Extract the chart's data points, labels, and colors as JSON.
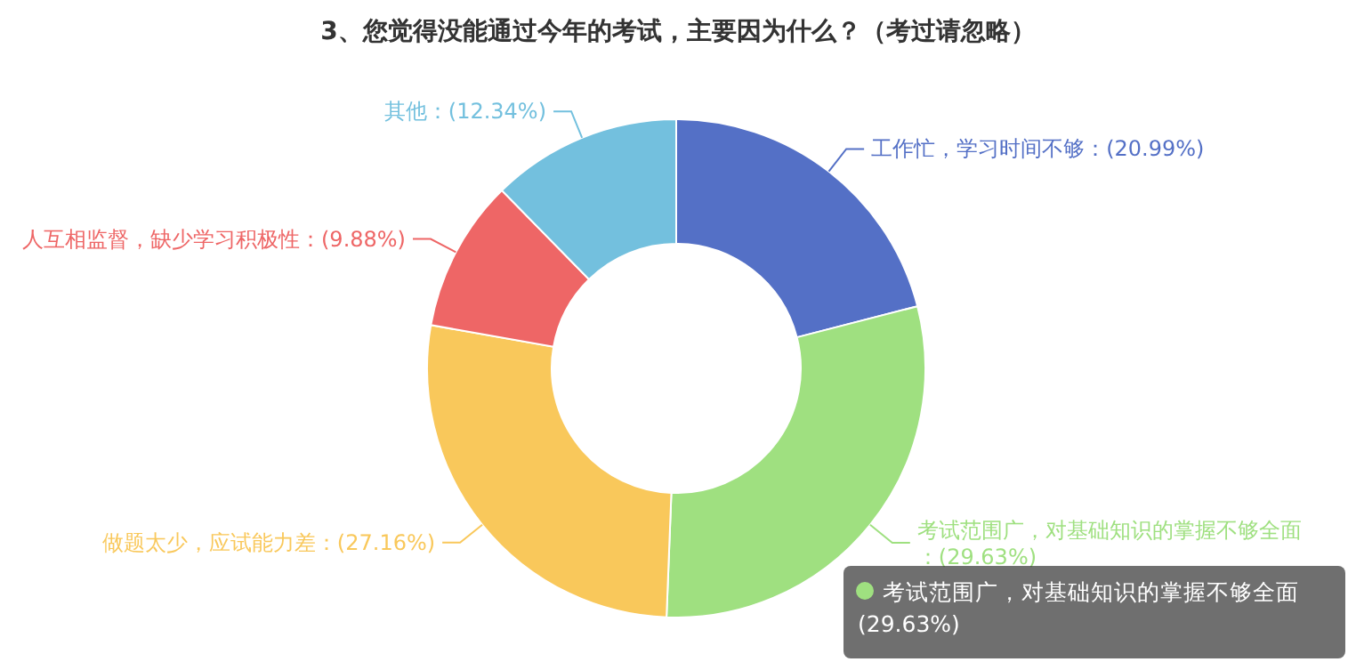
{
  "chart_data": {
    "type": "donut",
    "title": "3、您觉得没能通过今年的考试，主要因为什么？（考过请忽略）",
    "categories": [
      "工作忙，学习时间不够",
      "考试范围广，对基础知识的掌握不够全面",
      "做题太少，应试能力差",
      "人互相监督，缺少学习积极性",
      "其他"
    ],
    "values": [
      20.99,
      29.63,
      27.16,
      9.88,
      12.34
    ],
    "colors": [
      "#5470c6",
      "#9fe080",
      "#f9c85b",
      "#ee6666",
      "#73c0de"
    ],
    "value_labels": [
      "：(20.99%)",
      "：(29.63%)",
      "：(27.16%)",
      "：(9.88%)",
      "：(12.34%)"
    ],
    "annotations": [
      "考试范围广，对基础知识的掌握不够全面",
      "(29.63%)"
    ]
  }
}
